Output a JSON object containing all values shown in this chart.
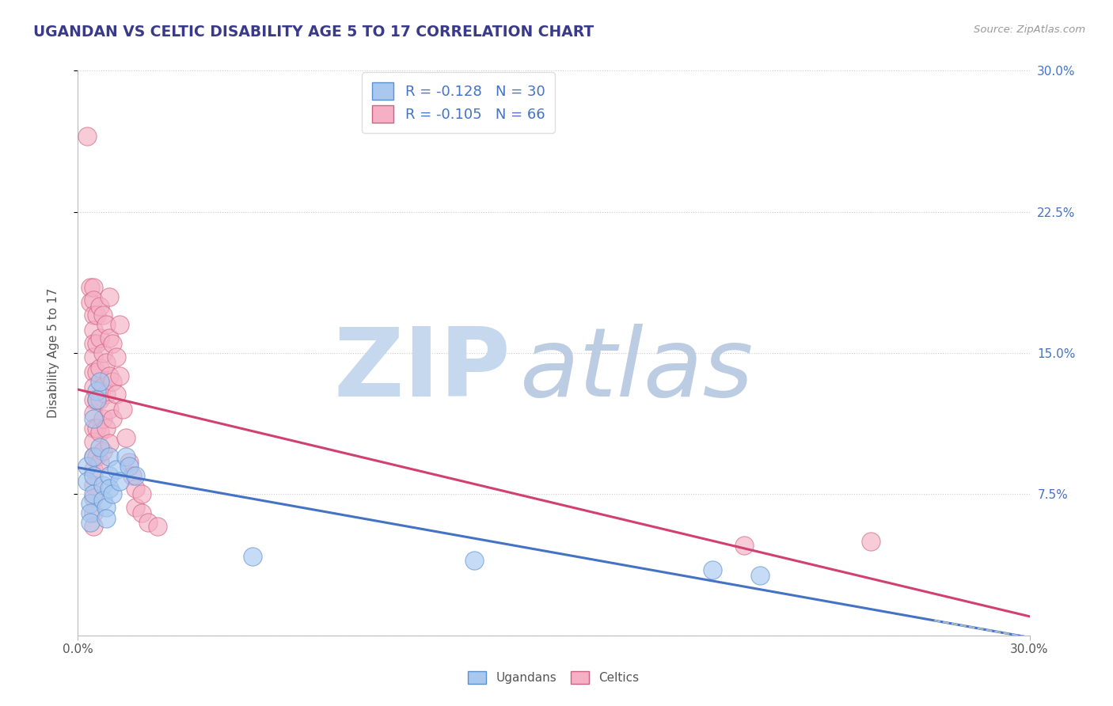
{
  "title": "UGANDAN VS CELTIC DISABILITY AGE 5 TO 17 CORRELATION CHART",
  "source": "Source: ZipAtlas.com",
  "ylabel": "Disability Age 5 to 17",
  "xlim": [
    0.0,
    0.3
  ],
  "ylim": [
    0.0,
    0.3
  ],
  "legend_ugandan_R": "-0.128",
  "legend_ugandan_N": "30",
  "legend_celtic_R": "-0.105",
  "legend_celtic_N": "66",
  "ugandan_fill": "#A8C8F0",
  "ugandan_edge": "#5B90D0",
  "celtic_fill": "#F5B0C5",
  "celtic_edge": "#D06080",
  "regression_ugandan": "#4472C4",
  "regression_celtic": "#D04070",
  "dashed_color": "#AABBCC",
  "watermark_zip": "#C5D8EE",
  "watermark_atlas": "#B5C8E0",
  "background": "#FFFFFF",
  "grid_color": "#CCCCCC",
  "title_color": "#3A3A8A",
  "right_tick_color": "#4472C4",
  "ugandan_points": [
    [
      0.003,
      0.09
    ],
    [
      0.003,
      0.082
    ],
    [
      0.004,
      0.07
    ],
    [
      0.004,
      0.065
    ],
    [
      0.004,
      0.06
    ],
    [
      0.005,
      0.115
    ],
    [
      0.005,
      0.095
    ],
    [
      0.005,
      0.085
    ],
    [
      0.005,
      0.075
    ],
    [
      0.006,
      0.13
    ],
    [
      0.006,
      0.125
    ],
    [
      0.007,
      0.135
    ],
    [
      0.007,
      0.1
    ],
    [
      0.008,
      0.08
    ],
    [
      0.008,
      0.072
    ],
    [
      0.009,
      0.068
    ],
    [
      0.009,
      0.062
    ],
    [
      0.01,
      0.095
    ],
    [
      0.01,
      0.085
    ],
    [
      0.01,
      0.078
    ],
    [
      0.011,
      0.075
    ],
    [
      0.012,
      0.088
    ],
    [
      0.013,
      0.082
    ],
    [
      0.015,
      0.095
    ],
    [
      0.016,
      0.09
    ],
    [
      0.018,
      0.085
    ],
    [
      0.055,
      0.042
    ],
    [
      0.125,
      0.04
    ],
    [
      0.2,
      0.035
    ],
    [
      0.215,
      0.032
    ]
  ],
  "celtic_points": [
    [
      0.003,
      0.265
    ],
    [
      0.004,
      0.185
    ],
    [
      0.004,
      0.177
    ],
    [
      0.005,
      0.185
    ],
    [
      0.005,
      0.178
    ],
    [
      0.005,
      0.17
    ],
    [
      0.005,
      0.162
    ],
    [
      0.005,
      0.155
    ],
    [
      0.005,
      0.148
    ],
    [
      0.005,
      0.14
    ],
    [
      0.005,
      0.132
    ],
    [
      0.005,
      0.125
    ],
    [
      0.005,
      0.118
    ],
    [
      0.005,
      0.11
    ],
    [
      0.005,
      0.103
    ],
    [
      0.005,
      0.095
    ],
    [
      0.005,
      0.088
    ],
    [
      0.005,
      0.08
    ],
    [
      0.005,
      0.073
    ],
    [
      0.005,
      0.065
    ],
    [
      0.005,
      0.058
    ],
    [
      0.006,
      0.17
    ],
    [
      0.006,
      0.155
    ],
    [
      0.006,
      0.14
    ],
    [
      0.006,
      0.125
    ],
    [
      0.006,
      0.11
    ],
    [
      0.006,
      0.095
    ],
    [
      0.007,
      0.175
    ],
    [
      0.007,
      0.158
    ],
    [
      0.007,
      0.142
    ],
    [
      0.007,
      0.125
    ],
    [
      0.007,
      0.108
    ],
    [
      0.007,
      0.092
    ],
    [
      0.008,
      0.17
    ],
    [
      0.008,
      0.15
    ],
    [
      0.008,
      0.132
    ],
    [
      0.008,
      0.115
    ],
    [
      0.008,
      0.098
    ],
    [
      0.009,
      0.165
    ],
    [
      0.009,
      0.145
    ],
    [
      0.009,
      0.128
    ],
    [
      0.009,
      0.11
    ],
    [
      0.01,
      0.18
    ],
    [
      0.01,
      0.158
    ],
    [
      0.01,
      0.138
    ],
    [
      0.01,
      0.12
    ],
    [
      0.01,
      0.102
    ],
    [
      0.011,
      0.155
    ],
    [
      0.011,
      0.135
    ],
    [
      0.011,
      0.115
    ],
    [
      0.012,
      0.148
    ],
    [
      0.012,
      0.128
    ],
    [
      0.013,
      0.165
    ],
    [
      0.013,
      0.138
    ],
    [
      0.014,
      0.12
    ],
    [
      0.015,
      0.105
    ],
    [
      0.016,
      0.092
    ],
    [
      0.017,
      0.085
    ],
    [
      0.018,
      0.078
    ],
    [
      0.018,
      0.068
    ],
    [
      0.02,
      0.075
    ],
    [
      0.02,
      0.065
    ],
    [
      0.022,
      0.06
    ],
    [
      0.025,
      0.058
    ],
    [
      0.21,
      0.048
    ],
    [
      0.25,
      0.05
    ]
  ]
}
